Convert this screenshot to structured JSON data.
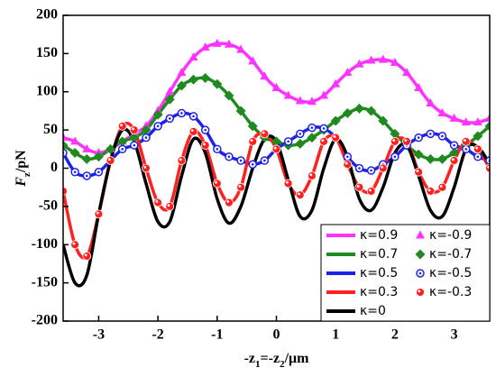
{
  "chart_data": {
    "type": "line",
    "xlabel": [
      {
        "text": "-z"
      },
      {
        "text": "1",
        "sub": true
      },
      {
        "text": "=-z"
      },
      {
        "text": "2",
        "sub": true
      },
      {
        "text": "/μm"
      }
    ],
    "ylabel": [
      {
        "text": "F",
        "italic": true
      },
      {
        "text": "z",
        "sub": true
      },
      {
        "text": "/pN"
      }
    ],
    "xlim": [
      -3.6,
      3.6
    ],
    "xticks": [
      -3,
      -2,
      -1,
      0,
      1,
      2,
      3
    ],
    "ylim": [
      -200,
      200
    ],
    "yticks": [
      -200,
      -150,
      -100,
      -50,
      0,
      50,
      100,
      150,
      200
    ],
    "x": [
      -3.6,
      -3.4,
      -3.2,
      -3.0,
      -2.8,
      -2.6,
      -2.4,
      -2.2,
      -2.0,
      -1.8,
      -1.6,
      -1.4,
      -1.2,
      -1.0,
      -0.8,
      -0.6,
      -0.4,
      -0.2,
      0.0,
      0.2,
      0.4,
      0.6,
      0.8,
      1.0,
      1.2,
      1.4,
      1.6,
      1.8,
      2.0,
      2.2,
      2.4,
      2.6,
      2.8,
      3.0,
      3.2,
      3.4,
      3.6
    ],
    "series": [
      {
        "name": "κ=0.9",
        "color": "#ff33ff",
        "style": "line",
        "values": [
          40,
          35,
          25,
          20,
          25,
          35,
          45,
          55,
          75,
          100,
          125,
          145,
          158,
          163,
          162,
          155,
          140,
          120,
          105,
          95,
          88,
          87,
          95,
          110,
          125,
          136,
          141,
          142,
          138,
          125,
          105,
          85,
          72,
          65,
          60,
          60,
          65
        ]
      },
      {
        "name": "κ=-0.9",
        "color": "#ff33ff",
        "style": "marker",
        "marker": "triangle",
        "values": [
          40,
          35,
          25,
          20,
          25,
          35,
          45,
          55,
          75,
          100,
          125,
          145,
          158,
          163,
          162,
          155,
          140,
          120,
          105,
          95,
          88,
          87,
          95,
          110,
          125,
          136,
          141,
          142,
          138,
          125,
          105,
          85,
          72,
          65,
          60,
          60,
          65
        ]
      },
      {
        "name": "κ=0.7",
        "color": "#1f8a1f",
        "style": "line",
        "values": [
          30,
          20,
          12,
          15,
          25,
          35,
          40,
          50,
          70,
          90,
          108,
          116,
          118,
          110,
          95,
          75,
          55,
          40,
          35,
          30,
          32,
          40,
          50,
          62,
          72,
          78,
          75,
          62,
          45,
          30,
          18,
          12,
          12,
          20,
          30,
          42,
          55
        ]
      },
      {
        "name": "κ=-0.7",
        "color": "#1f8a1f",
        "style": "marker",
        "marker": "diamond",
        "values": [
          30,
          20,
          12,
          15,
          25,
          35,
          40,
          50,
          70,
          90,
          108,
          116,
          118,
          110,
          95,
          75,
          55,
          40,
          35,
          30,
          32,
          40,
          50,
          62,
          72,
          78,
          75,
          62,
          45,
          30,
          18,
          12,
          12,
          20,
          30,
          42,
          55
        ]
      },
      {
        "name": "κ=0.5",
        "color": "#1e22e6",
        "style": "line",
        "values": [
          20,
          -5,
          -10,
          -5,
          10,
          25,
          30,
          40,
          55,
          65,
          72,
          68,
          50,
          25,
          15,
          10,
          5,
          10,
          25,
          35,
          45,
          53,
          52,
          40,
          15,
          0,
          -3,
          5,
          15,
          30,
          40,
          45,
          42,
          30,
          25,
          15,
          10
        ]
      },
      {
        "name": "κ=-0.5",
        "color": "#1e22e6",
        "style": "marker",
        "marker": "open-circle",
        "values": [
          20,
          -5,
          -10,
          -5,
          10,
          25,
          30,
          40,
          55,
          65,
          72,
          68,
          50,
          25,
          15,
          10,
          5,
          10,
          25,
          35,
          45,
          53,
          52,
          40,
          15,
          0,
          -3,
          5,
          15,
          30,
          40,
          45,
          42,
          30,
          25,
          15,
          10
        ]
      },
      {
        "name": "κ=0.3",
        "color": "#ff2020",
        "style": "line",
        "values": [
          -30,
          -100,
          -115,
          -60,
          10,
          55,
          50,
          0,
          -45,
          -50,
          10,
          48,
          30,
          -20,
          -45,
          -25,
          35,
          45,
          25,
          -20,
          -35,
          -10,
          35,
          40,
          5,
          -25,
          -30,
          0,
          35,
          35,
          -5,
          -30,
          -25,
          10,
          35,
          25,
          0
        ]
      },
      {
        "name": "κ=-0.3",
        "color": "#ff2020",
        "style": "marker",
        "marker": "circle",
        "values": [
          -30,
          -100,
          -115,
          -60,
          10,
          55,
          50,
          0,
          -45,
          -50,
          10,
          48,
          30,
          -20,
          -45,
          -25,
          35,
          45,
          25,
          -20,
          -35,
          -10,
          35,
          40,
          5,
          -25,
          -30,
          0,
          35,
          35,
          -5,
          -30,
          -25,
          10,
          35,
          25,
          0
        ]
      },
      {
        "name": "κ=0",
        "color": "#000000",
        "style": "line",
        "values": [
          -100,
          -150,
          -140,
          -60,
          10,
          50,
          35,
          -20,
          -70,
          -70,
          -10,
          38,
          20,
          -40,
          -72,
          -50,
          0,
          38,
          35,
          -15,
          -63,
          -55,
          0,
          38,
          15,
          -40,
          -55,
          -25,
          20,
          30,
          -10,
          -55,
          -63,
          -25,
          25,
          28,
          5
        ]
      }
    ]
  }
}
